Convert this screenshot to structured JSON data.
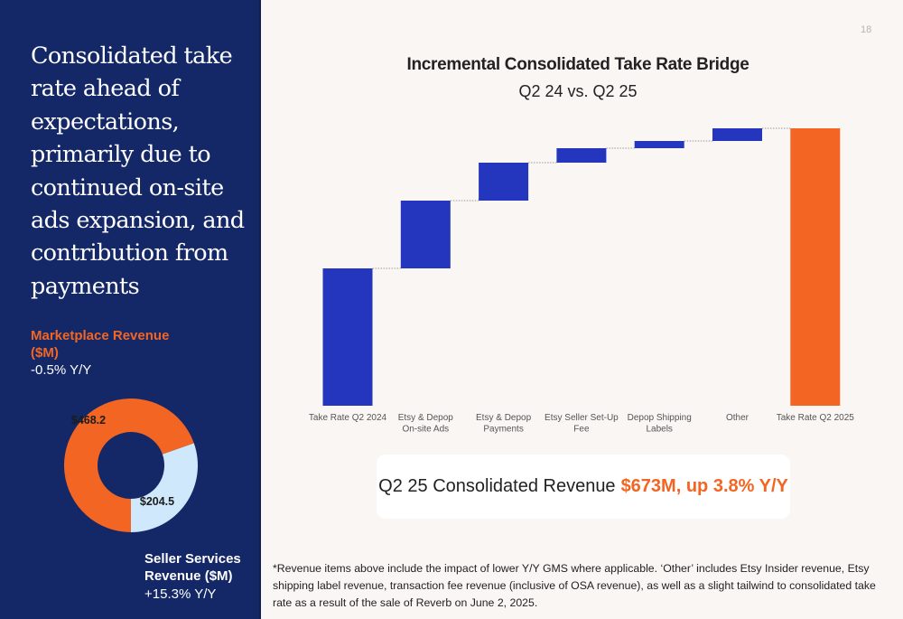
{
  "page": {
    "number": "18"
  },
  "left_panel": {
    "headline": "Consolidated take rate ahead of expectations, primarily due to continued on-site ads expansion, and contribution from payments",
    "marketplace": {
      "label": "Marketplace Revenue ($M)",
      "yoy": "-0.5% Y/Y",
      "value_label": "$468.2"
    },
    "seller_services": {
      "label": "Seller Services Revenue ($M)",
      "yoy": "+15.3% Y/Y",
      "value_label": "$204.5"
    }
  },
  "colors": {
    "navy": "#142868",
    "orange": "#f26522",
    "blue_bar": "#2436be",
    "light_blue": "#cfe8fb",
    "background": "#faf6f3"
  },
  "callout": {
    "prefix": "Q2 25 Consolidated Revenue",
    "highlight": "$673M, up 3.8% Y/Y"
  },
  "footnote": "*Revenue items above include the impact of lower Y/Y GMS where applicable. ‘Other’ includes Etsy Insider revenue, Etsy shipping label revenue, transaction fee revenue (inclusive of OSA revenue), as well as a slight tailwind to consolidated take rate as a result of the sale of Reverb on June 2, 2025.",
  "chart_data": [
    {
      "type": "bar",
      "subtype": "waterfall",
      "title": "Incremental Consolidated Take Rate Bridge",
      "subtitle": "Q2 24 vs. Q2 25",
      "xlabel": "",
      "ylabel": "",
      "y_axis_shown": false,
      "grid": false,
      "units_note": "relative units (no numeric axis shown)",
      "categories": [
        "Take Rate Q2 2024",
        "Etsy & Depop On-site Ads",
        "Etsy & Depop Payments",
        "Etsy Seller Set-Up Fee",
        "Depop Shipping Labels",
        "Other",
        "Take Rate Q2 2025"
      ],
      "bars": [
        {
          "category": "Take Rate Q2 2024",
          "kind": "total",
          "value": 152
        },
        {
          "category": "Etsy & Depop On-site Ads",
          "kind": "increment",
          "value": 75
        },
        {
          "category": "Etsy & Depop Payments",
          "kind": "increment",
          "value": 42
        },
        {
          "category": "Etsy Seller Set-Up Fee",
          "kind": "increment",
          "value": 16
        },
        {
          "category": "Depop Shipping Labels",
          "kind": "increment",
          "value": 8
        },
        {
          "category": "Other",
          "kind": "increment",
          "value": 14
        },
        {
          "category": "Take Rate Q2 2025",
          "kind": "total",
          "value": 307
        }
      ],
      "ylim": [
        0,
        307
      ]
    },
    {
      "type": "pie",
      "subtype": "donut",
      "title": "",
      "slices": [
        {
          "label": "Marketplace Revenue ($M)",
          "value": 468.2,
          "display": "$468.2"
        },
        {
          "label": "Seller Services Revenue ($M)",
          "value": 204.5,
          "display": "$204.5"
        }
      ]
    }
  ]
}
